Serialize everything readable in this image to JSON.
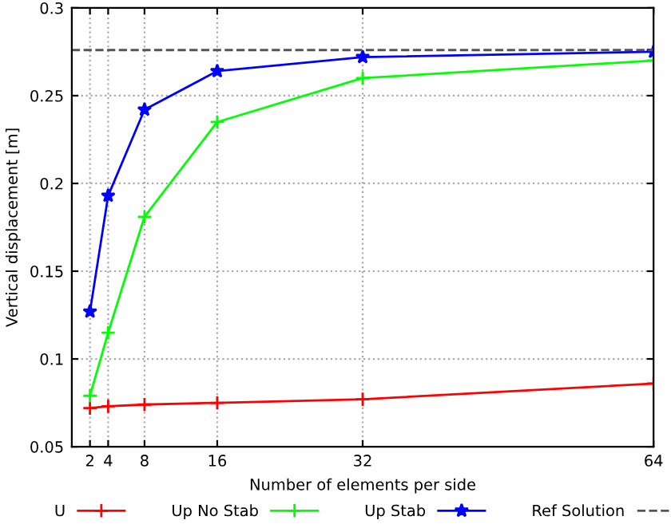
{
  "chart_data": {
    "type": "line",
    "xlabel": "Number of elements per side",
    "ylabel": "Vertical displacement [m]",
    "x": [
      2,
      4,
      8,
      16,
      32,
      64
    ],
    "series": [
      {
        "name": "U",
        "color": "#ff0000",
        "marker": "cross",
        "values": [
          0.072,
          0.073,
          0.074,
          0.075,
          0.077,
          0.086
        ]
      },
      {
        "name": "Up No Stab",
        "color": "#00ff00",
        "marker": "cross",
        "values": [
          0.079,
          0.115,
          0.181,
          0.235,
          0.26,
          0.27
        ]
      },
      {
        "name": "Up Stab",
        "color": "#0000ff",
        "marker": "star",
        "values": [
          0.127,
          0.193,
          0.242,
          0.264,
          0.272,
          0.275
        ]
      },
      {
        "name": "Ref Solution",
        "color": "#555555",
        "marker": "none",
        "line_style": "dashed",
        "x": [
          0,
          64
        ],
        "values": [
          0.276,
          0.276
        ]
      }
    ],
    "xlim": [
      0,
      64
    ],
    "xticks": [
      2,
      4,
      8,
      16,
      32,
      64
    ],
    "ylim": [
      0.05,
      0.3
    ],
    "yticks": [
      0.05,
      0.1,
      0.15,
      0.2,
      0.25,
      0.3
    ],
    "grid": true,
    "legend": "bottom"
  }
}
